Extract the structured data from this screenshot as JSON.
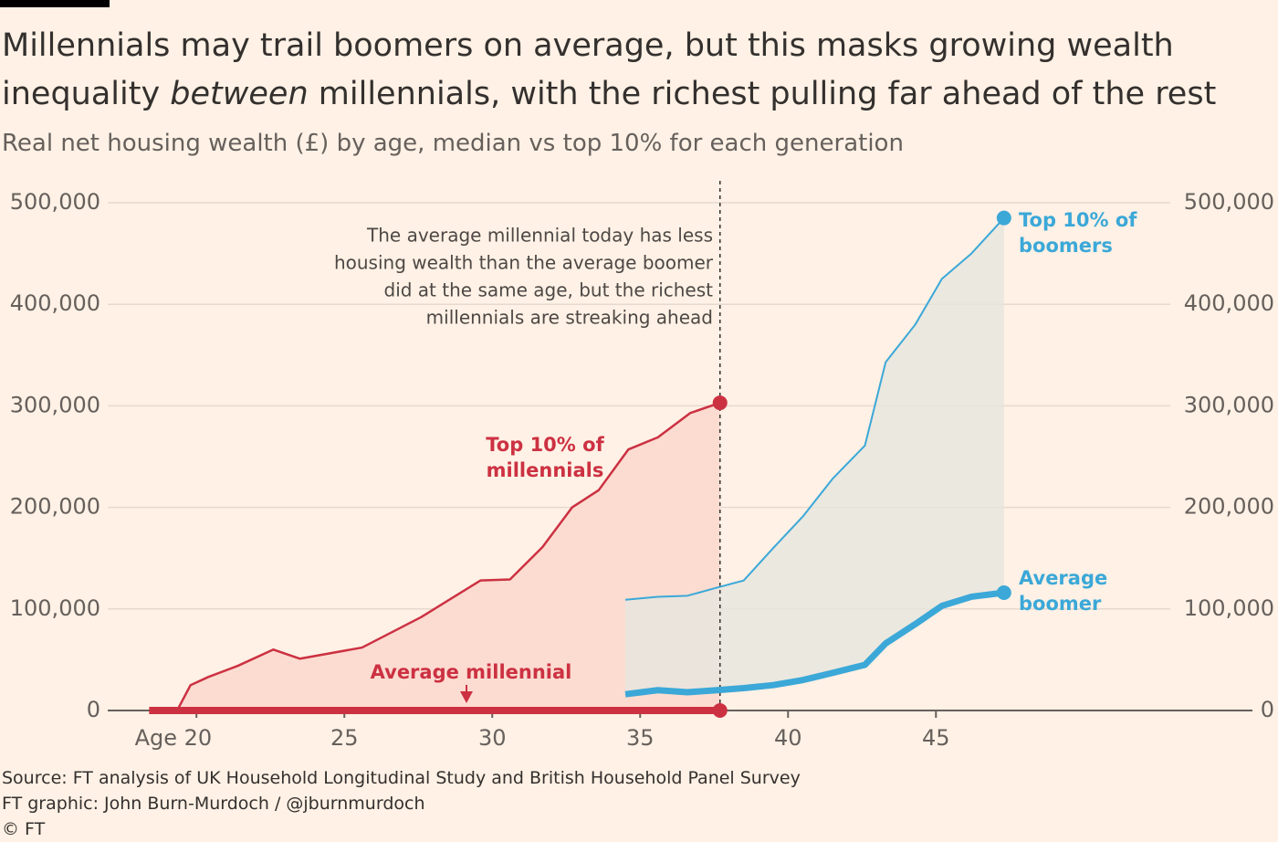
{
  "chart_data": {
    "type": "line",
    "title_parts": [
      "Millennials may trail boomers on average, but this masks growing wealth",
      "inequality ",
      "between",
      " millennials, with the richest pulling far ahead of the rest"
    ],
    "subtitle": "Real net housing wealth (£) by age, median vs top 10% for each generation",
    "annotation": [
      "The average millennial today has less",
      "housing wealth than the average boomer",
      "did at the same age, but the richest",
      "millennials are streaking ahead"
    ],
    "xlim": [
      17,
      55.7
    ],
    "xticks": [
      {
        "value": 20,
        "label": "Age 20"
      },
      25,
      30,
      35,
      40,
      45
    ],
    "ylim": [
      0,
      500000
    ],
    "yticks": [
      0,
      {
        "value": 100000,
        "label": "100,000"
      },
      {
        "value": 200000,
        "label": "200,000"
      },
      {
        "value": 300000,
        "label": "300,000"
      },
      {
        "value": 400000,
        "label": "400,000"
      },
      {
        "value": 500000,
        "label": "500,000"
      }
    ],
    "y2lim": [
      0,
      500000
    ],
    "y2ticks": [
      0,
      {
        "value": 100000,
        "label": "100,000"
      },
      {
        "value": 200000,
        "label": "200,000"
      },
      {
        "value": 300000,
        "label": "300,000"
      },
      {
        "value": 400000,
        "label": "400,000"
      },
      {
        "value": 500000,
        "label": "500,000"
      }
    ],
    "grid": true,
    "series": [
      {
        "name_lines": [
          "Top 10% of",
          "millennials"
        ],
        "color": "#cc3142",
        "width": 2.5,
        "fill": "#fcdcd1",
        "x": [
          19.4,
          19.8,
          20.4,
          21.4,
          22.6,
          23.5,
          25.6,
          27.6,
          29.6,
          30.6,
          31.7,
          32.7,
          33.6,
          34.6,
          35.6,
          36.7,
          37.7
        ],
        "values": [
          3000,
          25000,
          33000,
          44000,
          60000,
          51000,
          62000,
          92000,
          128000,
          129000,
          161000,
          200000,
          217000,
          257000,
          269000,
          293000,
          303000
        ]
      },
      {
        "name_lines": [
          "Average millennial"
        ],
        "color": "#cc3142",
        "width": 8,
        "x": [
          18.4,
          37.7
        ],
        "values": [
          0,
          0
        ]
      },
      {
        "name_lines": [
          "Top 10% of",
          "boomers"
        ],
        "color": "#3ba8d8",
        "width": 2,
        "fill": "#e6e5de",
        "x": [
          34.5,
          35.6,
          36.6,
          37.6,
          38.5,
          39.5,
          40.5,
          41.5,
          42.6,
          43.3,
          44.3,
          45.2,
          46.2,
          47.3
        ],
        "values": [
          109000,
          112000,
          113000,
          121000,
          128000,
          160000,
          191000,
          228000,
          261000,
          343000,
          380000,
          425000,
          450000,
          485000
        ]
      },
      {
        "name_lines": [
          "Average",
          "boomer"
        ],
        "color": "#3ba8d8",
        "width": 7,
        "x": [
          34.5,
          35.6,
          36.6,
          37.6,
          38.5,
          39.5,
          40.5,
          41.5,
          42.6,
          43.3,
          44.3,
          45.2,
          46.2,
          47.3
        ],
        "values": [
          16000,
          20000,
          18000,
          20000,
          22000,
          25000,
          30000,
          37000,
          45000,
          66000,
          85000,
          103000,
          112000,
          116000
        ]
      }
    ],
    "source": "Source: FT analysis of UK Household Longitudinal Study and British Household Panel Survey",
    "credit": "FT graphic: John Burn-Murdoch / @jburnmurdoch",
    "copyright": "© FT"
  }
}
